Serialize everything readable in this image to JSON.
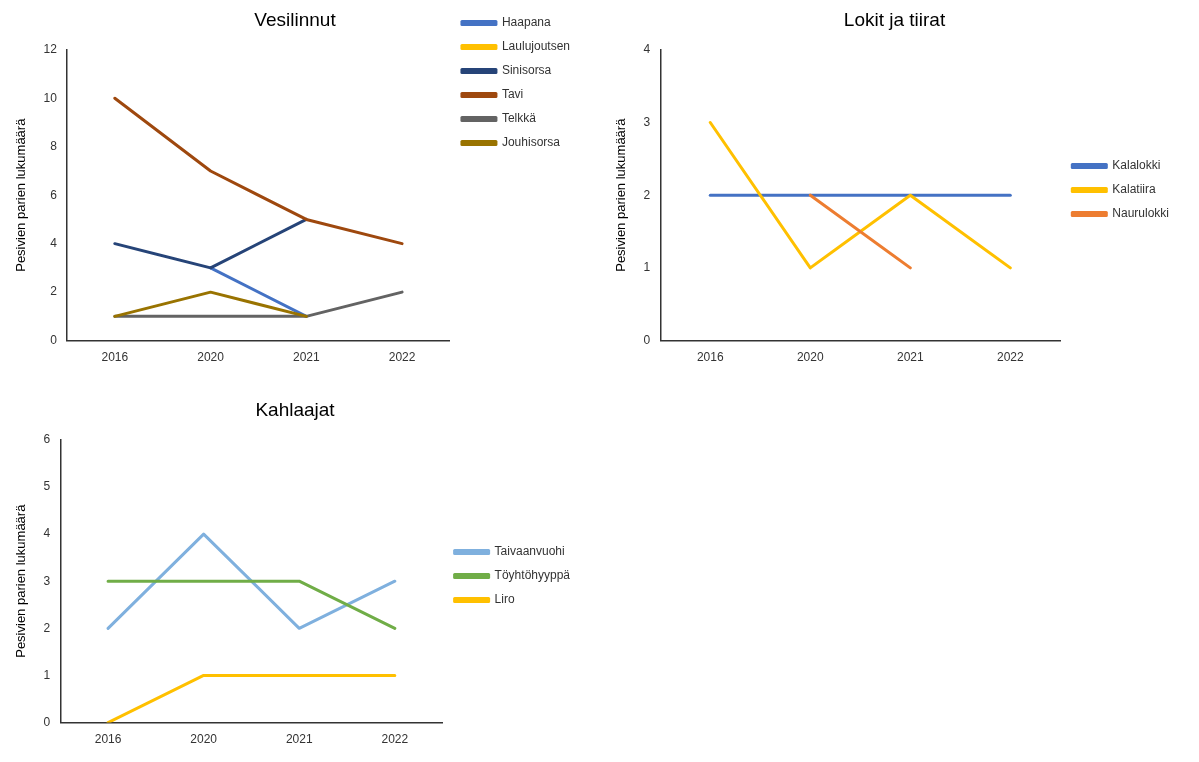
{
  "chart_data": [
    {
      "type": "line",
      "title": "Vesilinnut",
      "ylabel": "Pesivien parien lukumäärä",
      "categories": [
        "2016",
        "2020",
        "2021",
        "2022"
      ],
      "ylim": [
        0,
        12
      ],
      "yticks": [
        0,
        2,
        4,
        6,
        8,
        10,
        12
      ],
      "grid": false,
      "legend": "top right",
      "marker": "none",
      "line_style": "solid",
      "series": [
        {
          "name": "Haapana",
          "color": "#4472c4",
          "values": [
            null,
            3,
            1,
            null
          ]
        },
        {
          "name": "Laulujoutsen",
          "color": "#ffc000",
          "values": [
            null,
            null,
            null,
            null
          ]
        },
        {
          "name": "Sinisorsa",
          "color": "#264478",
          "values": [
            4,
            3,
            5,
            null
          ]
        },
        {
          "name": "Tavi",
          "color": "#9e480e",
          "values": [
            10,
            7,
            5,
            4
          ]
        },
        {
          "name": "Telkkä",
          "color": "#636363",
          "values": [
            1,
            1,
            1,
            2
          ]
        },
        {
          "name": "Jouhisorsa",
          "color": "#997300",
          "values": [
            1,
            2,
            1,
            null
          ]
        }
      ]
    },
    {
      "type": "line",
      "title": "Lokit ja tiirat",
      "ylabel": "Pesivien parien lukumäärä",
      "categories": [
        "2016",
        "2020",
        "2021",
        "2022"
      ],
      "ylim": [
        0,
        4
      ],
      "yticks": [
        0,
        1,
        2,
        3,
        4
      ],
      "grid": false,
      "legend": "right",
      "marker": "none",
      "line_style": "solid",
      "series": [
        {
          "name": "Kalalokki",
          "color": "#4472c4",
          "values": [
            2,
            2,
            2,
            2
          ]
        },
        {
          "name": "Kalatiira",
          "color": "#ffc000",
          "values": [
            3,
            1,
            2,
            1
          ]
        },
        {
          "name": "Naurulokki",
          "color": "#ed7d31",
          "values": [
            null,
            2,
            1,
            null
          ]
        }
      ]
    },
    {
      "type": "line",
      "title": "Kahlaajat",
      "ylabel": "Pesivien parien lukumäärä",
      "categories": [
        "2016",
        "2020",
        "2021",
        "2022"
      ],
      "ylim": [
        0,
        6
      ],
      "yticks": [
        0,
        1,
        2,
        3,
        4,
        5,
        6
      ],
      "grid": false,
      "legend": "right",
      "marker": "none",
      "line_style": "solid",
      "series": [
        {
          "name": "Taivaanvuohi",
          "color": "#7fb0de",
          "values": [
            2,
            4,
            2,
            3
          ]
        },
        {
          "name": "Töyhtöhyyppä",
          "color": "#70ad47",
          "values": [
            3,
            3,
            3,
            2
          ]
        },
        {
          "name": "Liro",
          "color": "#ffc000",
          "values": [
            0,
            1,
            1,
            1
          ]
        }
      ]
    }
  ]
}
